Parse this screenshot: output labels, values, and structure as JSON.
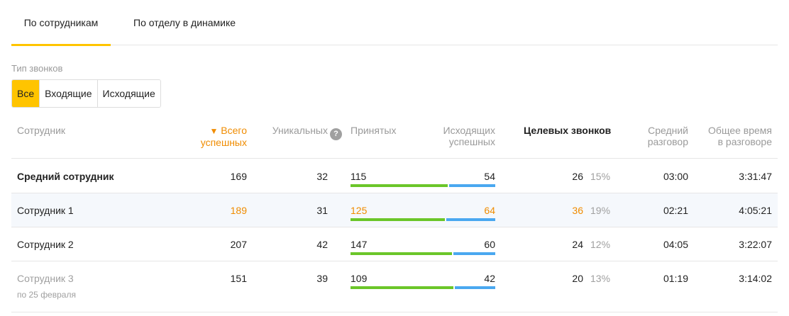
{
  "tabs": [
    {
      "label": "По сотрудникам"
    },
    {
      "label": "По отделу в динамике"
    }
  ],
  "filter": {
    "label": "Тип звонков",
    "options": [
      "Все",
      "Входящие",
      "Исходящие"
    ],
    "selected": "Все"
  },
  "table": {
    "columns": {
      "employee": "Сотрудник",
      "total_success_line1": "Всего",
      "total_success_line2": "успешных",
      "sort_arrow": "▼",
      "unique": "Уникальных",
      "help": "?",
      "accepted": "Принятых",
      "outgoing_line1": "Исходящих",
      "outgoing_line2": "успешных",
      "target": "Целевых звонков",
      "avg_line1": "Средний",
      "avg_line2": "разговор",
      "total_time_line1": "Общее время",
      "total_time_line2": "в разговоре"
    },
    "rows": [
      {
        "name": "Средний сотрудник",
        "total": "169",
        "unique": "32",
        "accepted": "115",
        "outgoing": "54",
        "target": "26",
        "target_pct": "15%",
        "avg": "03:00",
        "total_time": "3:31:47",
        "bar_accepted_fraction": 0.68
      },
      {
        "name": "Сотрудник 1",
        "total": "189",
        "unique": "31",
        "accepted": "125",
        "outgoing": "64",
        "target": "36",
        "target_pct": "19%",
        "avg": "02:21",
        "total_time": "4:05:21",
        "bar_accepted_fraction": 0.66
      },
      {
        "name": "Сотрудник 2",
        "total": "207",
        "unique": "42",
        "accepted": "147",
        "outgoing": "60",
        "target": "24",
        "target_pct": "12%",
        "avg": "04:05",
        "total_time": "3:22:07",
        "bar_accepted_fraction": 0.71
      },
      {
        "name": "Сотрудник 3",
        "sub": "по 25 февраля",
        "total": "151",
        "unique": "39",
        "accepted": "109",
        "outgoing": "42",
        "target": "20",
        "target_pct": "13%",
        "avg": "01:19",
        "total_time": "3:14:02",
        "bar_accepted_fraction": 0.72
      }
    ]
  },
  "colors": {
    "accent": "#ffc400",
    "highlight_text": "#f08c00",
    "bar_accepted": "#6bc629",
    "bar_outgoing": "#4aa8f0"
  }
}
